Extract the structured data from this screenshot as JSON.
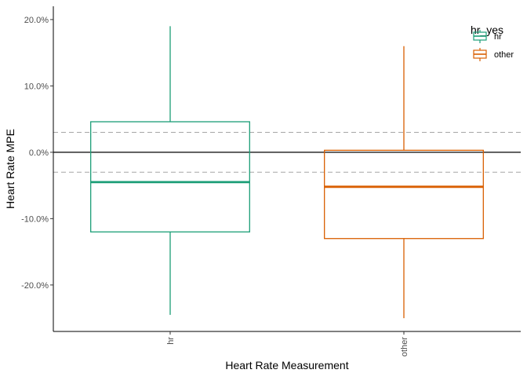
{
  "chart_data": {
    "type": "boxplot",
    "xlabel": "Heart Rate Measurement",
    "ylabel": "Heart Rate MPE",
    "categories": [
      "hr",
      "other"
    ],
    "ylim": [
      -27,
      22
    ],
    "yticks": [
      20,
      10,
      0,
      -10,
      -20
    ],
    "ytick_labels": [
      "20.0%",
      "10.0%",
      "0.0%",
      "-10.0%",
      "-20.0%"
    ],
    "y_unit": "percent",
    "x_tick_rotation": "vertical",
    "grid": false,
    "legend": {
      "title": "hr_yes",
      "placement": "top-right",
      "entries": [
        "hr",
        "other"
      ]
    },
    "series": [
      {
        "name": "hr",
        "color": "#1b9e77",
        "whisker_low": -24.5,
        "q1": -12.0,
        "median": -4.5,
        "q3": 4.6,
        "whisker_high": 19.0
      },
      {
        "name": "other",
        "color": "#d95f02",
        "whisker_low": -25.0,
        "q1": -13.0,
        "median": -5.2,
        "q3": 0.3,
        "whisker_high": 16.0
      }
    ],
    "reference_lines": [
      {
        "y": 0,
        "style": "solid",
        "color": "#000000"
      },
      {
        "y": 3,
        "style": "dashed",
        "color": "#a6a6a6"
      },
      {
        "y": -3,
        "style": "dashed",
        "color": "#a6a6a6"
      }
    ]
  }
}
